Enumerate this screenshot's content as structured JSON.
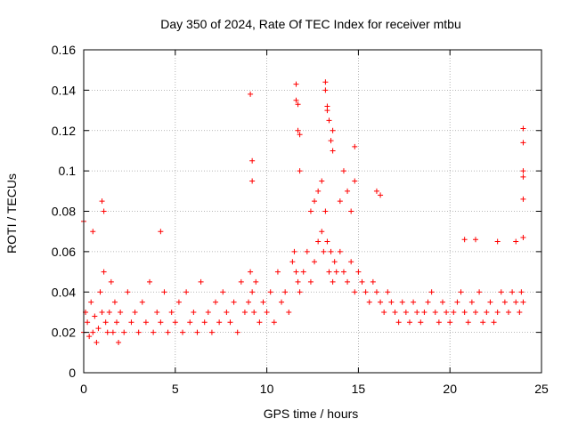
{
  "chart_data": {
    "type": "scatter",
    "title": "Day 350 of 2024, Rate Of TEC Index for receiver mtbu",
    "xlabel": "GPS time / hours",
    "ylabel": "ROTI / TECUs",
    "xlim": [
      0,
      25
    ],
    "ylim": [
      0,
      0.16
    ],
    "xticks": [
      0,
      5,
      10,
      15,
      20,
      25
    ],
    "xtick_labels": [
      "0",
      "5",
      "10",
      "15",
      "20",
      "25"
    ],
    "yticks": [
      0,
      0.02,
      0.04,
      0.06,
      0.08,
      0.1,
      0.12,
      0.14,
      0.16
    ],
    "ytick_labels": [
      "0",
      "0.02",
      "0.04",
      "0.06",
      "0.08",
      "0.1",
      "0.12",
      "0.14",
      "0.16"
    ],
    "grid": true,
    "marker": "plus",
    "color": "#ff0000",
    "series": [
      {
        "name": "ROTI",
        "x": [
          0.0,
          0.1,
          0.2,
          0.3,
          0.4,
          0.5,
          0.6,
          0.7,
          0.8,
          0.9,
          1.0,
          1.1,
          1.2,
          1.3,
          1.4,
          1.5,
          1.6,
          1.7,
          1.8,
          1.9,
          2.0,
          2.2,
          2.4,
          2.6,
          2.8,
          3.0,
          3.2,
          3.4,
          3.6,
          3.8,
          4.0,
          4.2,
          4.4,
          4.6,
          4.8,
          5.0,
          5.2,
          5.4,
          5.6,
          5.8,
          6.0,
          6.2,
          6.4,
          6.6,
          6.8,
          7.0,
          7.2,
          7.4,
          7.6,
          7.8,
          8.0,
          8.2,
          8.4,
          8.6,
          8.8,
          9.0,
          9.1,
          9.2,
          9.3,
          9.4,
          9.6,
          9.8,
          10.0,
          10.2,
          10.4,
          10.6,
          10.8,
          11.0,
          11.2,
          11.4,
          11.5,
          11.6,
          11.7,
          11.8,
          12.0,
          12.2,
          12.4,
          12.6,
          12.8,
          13.0,
          13.1,
          13.2,
          13.3,
          13.4,
          13.5,
          13.6,
          13.7,
          13.8,
          14.0,
          14.2,
          14.4,
          14.6,
          14.8,
          15.0,
          15.2,
          15.4,
          15.6,
          15.8,
          16.0,
          16.2,
          16.4,
          16.6,
          16.8,
          17.0,
          17.2,
          17.4,
          17.6,
          17.8,
          18.0,
          18.2,
          18.4,
          18.6,
          18.8,
          19.0,
          19.2,
          19.4,
          19.6,
          19.8,
          20.0,
          20.2,
          20.4,
          20.6,
          20.8,
          21.0,
          21.2,
          21.4,
          21.6,
          21.8,
          22.0,
          22.2,
          22.4,
          22.6,
          22.8,
          23.0,
          23.2,
          23.4,
          23.6,
          23.8,
          23.9,
          24.0,
          0.0,
          0.5,
          1.0,
          1.1,
          4.2,
          9.1,
          9.2,
          9.2,
          11.6,
          11.6,
          11.7,
          11.7,
          11.8,
          11.8,
          13.2,
          13.2,
          13.3,
          13.3,
          13.4,
          13.5,
          13.6,
          13.6,
          14.2,
          14.4,
          14.8,
          14.8,
          24.0,
          24.0,
          24.0,
          24.0,
          24.0,
          24.0,
          12.4,
          12.6,
          12.8,
          13.0,
          14.0,
          14.6,
          16.0,
          16.2,
          20.8,
          21.4,
          22.6,
          23.6
        ],
        "y": [
          0.02,
          0.03,
          0.025,
          0.018,
          0.035,
          0.02,
          0.028,
          0.015,
          0.022,
          0.04,
          0.03,
          0.05,
          0.025,
          0.02,
          0.03,
          0.045,
          0.02,
          0.035,
          0.025,
          0.015,
          0.03,
          0.02,
          0.04,
          0.025,
          0.03,
          0.02,
          0.035,
          0.025,
          0.045,
          0.02,
          0.03,
          0.025,
          0.04,
          0.02,
          0.03,
          0.025,
          0.035,
          0.02,
          0.04,
          0.025,
          0.03,
          0.02,
          0.045,
          0.025,
          0.03,
          0.02,
          0.035,
          0.025,
          0.04,
          0.03,
          0.025,
          0.035,
          0.02,
          0.045,
          0.03,
          0.035,
          0.05,
          0.04,
          0.03,
          0.045,
          0.025,
          0.035,
          0.03,
          0.04,
          0.025,
          0.05,
          0.035,
          0.04,
          0.03,
          0.055,
          0.06,
          0.05,
          0.045,
          0.04,
          0.05,
          0.06,
          0.045,
          0.055,
          0.065,
          0.07,
          0.06,
          0.08,
          0.065,
          0.05,
          0.06,
          0.045,
          0.055,
          0.05,
          0.06,
          0.05,
          0.045,
          0.055,
          0.04,
          0.05,
          0.045,
          0.04,
          0.035,
          0.045,
          0.04,
          0.035,
          0.03,
          0.04,
          0.035,
          0.03,
          0.025,
          0.035,
          0.03,
          0.025,
          0.035,
          0.03,
          0.025,
          0.03,
          0.035,
          0.04,
          0.03,
          0.025,
          0.035,
          0.03,
          0.025,
          0.03,
          0.035,
          0.04,
          0.03,
          0.025,
          0.035,
          0.03,
          0.04,
          0.025,
          0.03,
          0.035,
          0.025,
          0.03,
          0.04,
          0.035,
          0.03,
          0.04,
          0.035,
          0.03,
          0.04,
          0.035,
          0.075,
          0.07,
          0.085,
          0.08,
          0.07,
          0.138,
          0.105,
          0.095,
          0.143,
          0.135,
          0.133,
          0.12,
          0.118,
          0.1,
          0.144,
          0.14,
          0.13,
          0.132,
          0.125,
          0.115,
          0.12,
          0.11,
          0.1,
          0.09,
          0.112,
          0.095,
          0.121,
          0.114,
          0.1,
          0.097,
          0.086,
          0.067,
          0.08,
          0.085,
          0.09,
          0.095,
          0.085,
          0.08,
          0.09,
          0.088,
          0.066,
          0.066,
          0.065,
          0.065
        ]
      }
    ]
  }
}
